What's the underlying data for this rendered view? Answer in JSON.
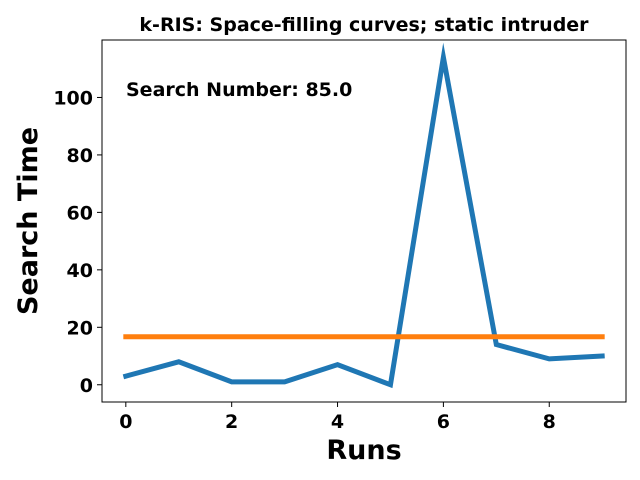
{
  "chart_data": {
    "type": "line",
    "title": "k-RIS: Space-filling curves; static intruder",
    "annotation": "Search Number: 85.0",
    "xlabel": "Runs",
    "ylabel": "Search Time",
    "xlim": [
      -0.45,
      9.45
    ],
    "ylim": [
      -6,
      120
    ],
    "xticks": [
      0,
      2,
      4,
      6,
      8
    ],
    "yticks": [
      0,
      20,
      40,
      60,
      80,
      100
    ],
    "grid": false,
    "series": [
      {
        "color": "#1f77b4",
        "x": [
          0,
          1,
          2,
          3,
          4,
          5,
          6,
          7,
          8,
          9
        ],
        "values": [
          3,
          8,
          1,
          1,
          7,
          0,
          114,
          14,
          9,
          10
        ]
      },
      {
        "color": "#ff7f0e",
        "x": [
          0,
          1,
          2,
          3,
          4,
          5,
          6,
          7,
          8,
          9
        ],
        "values": [
          16.7,
          16.7,
          16.7,
          16.7,
          16.7,
          16.7,
          16.7,
          16.7,
          16.7,
          16.7
        ]
      }
    ]
  }
}
